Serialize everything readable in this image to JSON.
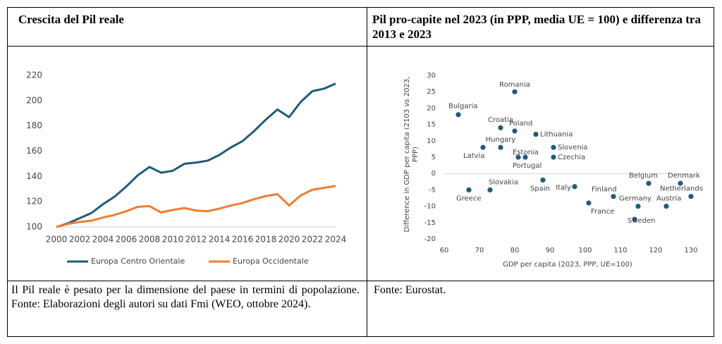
{
  "table": {
    "headers": [
      "Crescita del Pil reale",
      "Pil pro-capite nel 2023 (in PPP, media UE = 100) e differenza tra 2013 e 2023"
    ],
    "notes": [
      "Il Pil reale è pesato per la dimensione del paese in termini di popolazione. Fonte: Elaborazioni degli autori su dati Fmi (WEO, ottobre 2024).",
      "Fonte: Eurostat."
    ]
  },
  "chart_data": [
    {
      "type": "line",
      "x": [
        2000,
        2001,
        2002,
        2003,
        2004,
        2005,
        2006,
        2007,
        2008,
        2009,
        2010,
        2011,
        2012,
        2013,
        2014,
        2015,
        2016,
        2017,
        2018,
        2019,
        2020,
        2021,
        2022,
        2023,
        2024
      ],
      "series": [
        {
          "name": "Europa Centro Orientale",
          "color": "#1f5c7a",
          "values": [
            100,
            103,
            107,
            111,
            118,
            124,
            132,
            141,
            147.5,
            143,
            144.5,
            150,
            151,
            152.5,
            157,
            163,
            168,
            176,
            185,
            193,
            187,
            199,
            207.5,
            209.5,
            213.5
          ]
        },
        {
          "name": "Europa Occidentale",
          "color": "#ed7d31",
          "values": [
            100,
            102.5,
            104,
            105,
            107.5,
            109.5,
            112.5,
            116,
            116.5,
            111.5,
            113.5,
            115,
            113,
            112.5,
            114.5,
            117,
            119,
            122,
            124.5,
            126,
            117,
            125,
            129.5,
            131,
            132.5
          ]
        }
      ],
      "xlim": [
        2000,
        2024
      ],
      "xticks": [
        2000,
        2002,
        2004,
        2006,
        2008,
        2010,
        2012,
        2014,
        2016,
        2018,
        2020,
        2022,
        2024
      ],
      "ylim": [
        100,
        220
      ],
      "yticks": [
        100,
        120,
        140,
        160,
        180,
        200,
        220
      ],
      "legend": "bottom"
    },
    {
      "type": "scatter",
      "color": "#1f5c7a",
      "x_label": "GDP per capita (2023, PPP, UE=100)",
      "y_label": "Difference in GDP per capita (2103 vs 2023, PPP)",
      "labels": [
        "Romania",
        "Bulgaria",
        "Croatia",
        "Poland",
        "Lithuania",
        "Hungary",
        "Latvia",
        "Slovenia",
        "Estonia",
        "Portugal",
        "Czechia",
        "Spain",
        "Italy",
        "Belgium",
        "Denmark",
        "Netherlands",
        "Finland",
        "Austria",
        "Germany",
        "France",
        "Sweden",
        "Slovakia",
        "Greece"
      ],
      "x": [
        80,
        64,
        76,
        80,
        86,
        76,
        71,
        91,
        81,
        83,
        91,
        88,
        97,
        118,
        127,
        130,
        108,
        123,
        115,
        101,
        114,
        73,
        67
      ],
      "values": [
        25,
        18,
        14,
        13,
        12,
        8,
        8,
        8,
        5,
        5,
        5,
        -2,
        -4,
        -3,
        -3,
        -7,
        -7,
        -10,
        -10,
        -9,
        -14,
        -5,
        -5
      ],
      "xlim": [
        60,
        130
      ],
      "xticks": [
        60,
        70,
        80,
        90,
        100,
        110,
        120,
        130
      ],
      "ylim": [
        -20,
        30
      ],
      "yticks": [
        -20,
        -15,
        -10,
        -5,
        0,
        5,
        10,
        15,
        20,
        25,
        30
      ]
    }
  ]
}
